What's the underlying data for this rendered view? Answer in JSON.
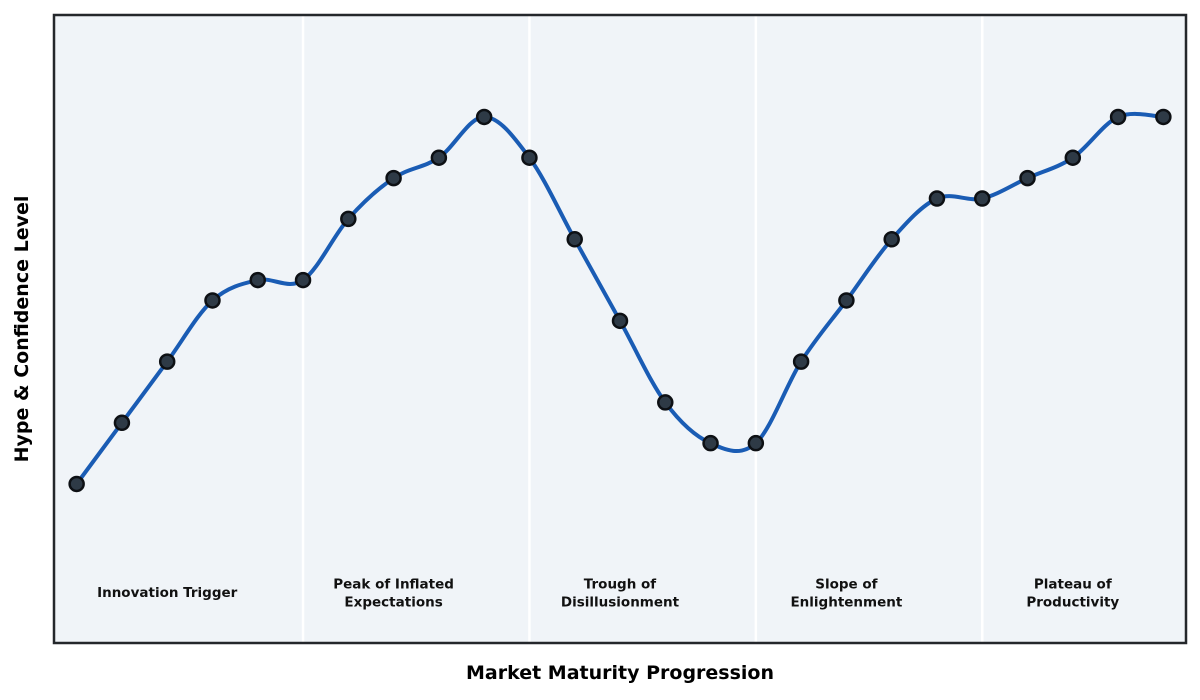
{
  "chart_data": {
    "type": "line",
    "title": "",
    "xlabel": "Market Maturity Progression",
    "ylabel": "Hype & Confidence Level",
    "x": [
      0,
      1,
      2,
      3,
      4,
      5,
      6,
      7,
      8,
      9,
      10,
      11,
      12,
      13,
      14,
      15,
      16,
      17,
      18,
      19,
      20,
      21,
      22,
      23,
      24
    ],
    "series": [
      {
        "name": "Hype & Confidence Level",
        "values": [
          10,
          25,
          40,
          55,
          60,
          60,
          75,
          85,
          90,
          100,
          90,
          70,
          50,
          30,
          20,
          20,
          40,
          55,
          70,
          80,
          80,
          85,
          90,
          100,
          100
        ]
      }
    ],
    "xlim": [
      -0.5,
      24.5
    ],
    "ylim": [
      -29,
      125
    ],
    "grid": false,
    "legend_position": "none",
    "smoothing": "spline",
    "marker": "circle",
    "phase_dividers_x": [
      5,
      10,
      15,
      20
    ],
    "phase_label_y": -17,
    "phases": [
      {
        "label": "Innovation Trigger",
        "center_x": 2
      },
      {
        "label": "Peak of Inflated\nExpectations",
        "center_x": 7
      },
      {
        "label": "Trough of\nDisillusionment",
        "center_x": 12
      },
      {
        "label": "Slope of\nEnlightenment",
        "center_x": 17
      },
      {
        "label": "Plateau of\nProductivity",
        "center_x": 22
      }
    ],
    "colors": {
      "line": "#1a5cb4",
      "marker_fill": "#2e3a46",
      "marker_edge": "#0d1014",
      "plot_background": "#f0f4f8",
      "divider": "#ffffff",
      "border": "#24272b",
      "phase_label_text": "#111111",
      "axis_title_text": "#000000"
    }
  }
}
